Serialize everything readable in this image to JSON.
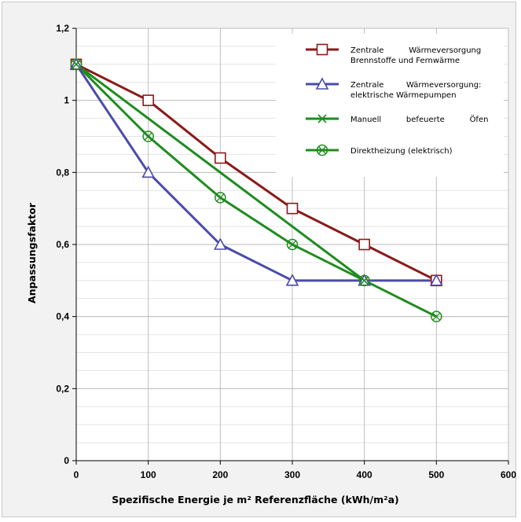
{
  "chart_data": {
    "type": "line",
    "title": "",
    "xlabel": "Spezifische Energie je m² Referenzfläche (kWh/m²a)",
    "ylabel": "Anpassungsfaktor",
    "xlim": [
      0,
      600
    ],
    "ylim": [
      0,
      1.2
    ],
    "x_ticks": [
      "0",
      "100",
      "200",
      "300",
      "400",
      "500",
      "600"
    ],
    "y_ticks": [
      "0",
      "0,2",
      "0,4",
      "0,6",
      "0,8",
      "1",
      "1,2"
    ],
    "grid": true,
    "legend_position": "top-right",
    "series": [
      {
        "name_lines": [
          "Zentrale          Wärmeversorgung",
          "Brennstoffe und Fernwärme"
        ],
        "name": "Zentrale Wärmeversorgung Brennstoffe und Fernwärme",
        "color": "#8b1a1a",
        "marker": "square",
        "x": [
          0,
          100,
          200,
          300,
          400,
          500
        ],
        "y": [
          1.1,
          1.0,
          0.84,
          0.7,
          0.6,
          0.5
        ]
      },
      {
        "name_lines": [
          "Zentrale         Wärmeversorgung:",
          "elektrische Wärmepumpen"
        ],
        "name": "Zentrale Wärmeversorgung: elektrische Wärmepumpen",
        "color": "#4b4baa",
        "marker": "triangle",
        "x": [
          0,
          100,
          200,
          300,
          400,
          500
        ],
        "y": [
          1.1,
          0.8,
          0.6,
          0.5,
          0.5,
          0.5
        ]
      },
      {
        "name_lines": [
          "Manuell          befeuerte          Öfen"
        ],
        "name": "Manuell befeuerte Öfen",
        "color": "#1e8c1e",
        "marker": "x",
        "x": [
          0,
          400
        ],
        "y": [
          1.1,
          0.5
        ]
      },
      {
        "name_lines": [
          "Direktheizung (elektrisch)"
        ],
        "name": "Direktheizung (elektrisch)",
        "color": "#1e8c1e",
        "marker": "circle-x",
        "x": [
          0,
          100,
          200,
          300,
          400,
          500
        ],
        "y": [
          1.1,
          0.9,
          0.73,
          0.6,
          0.5,
          0.4
        ]
      }
    ]
  }
}
